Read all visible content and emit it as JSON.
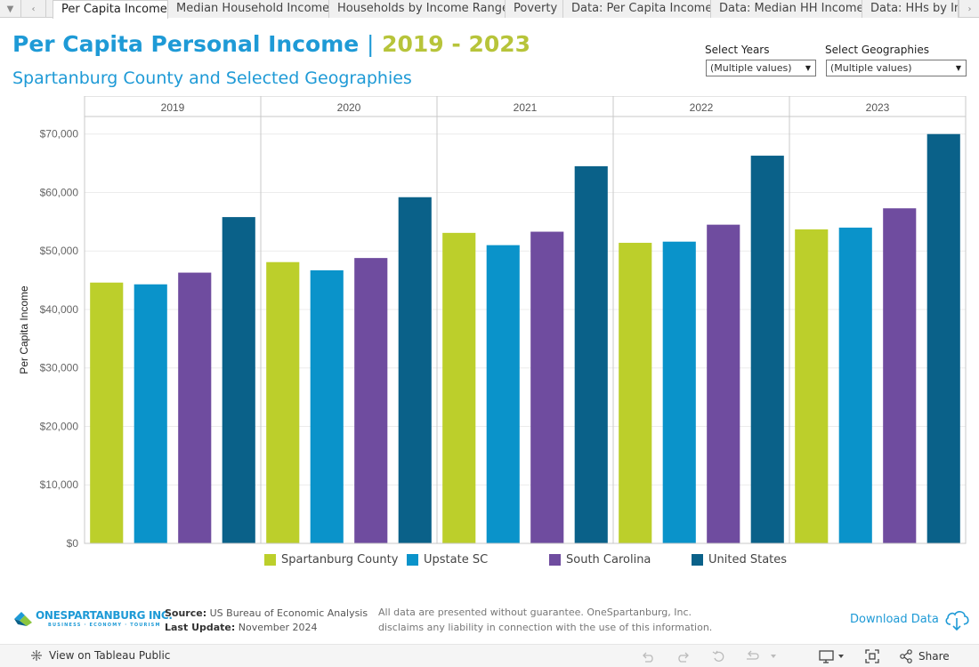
{
  "tabs": [
    {
      "label": "Per Capita Income",
      "active": true
    },
    {
      "label": "Median Household Income",
      "active": false
    },
    {
      "label": "Households by Income Range",
      "active": false
    },
    {
      "label": "Poverty",
      "active": false
    },
    {
      "label": "Data: Per Capita Income",
      "active": false
    },
    {
      "label": "Data: Median HH Income",
      "active": false
    },
    {
      "label": "Data: HHs by Inc",
      "active": false
    }
  ],
  "header": {
    "title_main": "Per Capita Personal Income",
    "title_sep": "|",
    "title_years": "2019 - 2023",
    "subtitle": "Spartanburg County and Selected Geographies"
  },
  "filters": {
    "years": {
      "label": "Select Years",
      "value": "(Multiple values)"
    },
    "geographies": {
      "label": "Select Geographies",
      "value": "(Multiple values)"
    }
  },
  "colors": {
    "Spartanburg County": "#bccf2b",
    "Upstate SC": "#0a93ca",
    "South Carolina": "#6f4c9f",
    "United States": "#0a6189",
    "accent": "#1e9ad6"
  },
  "chart_data": {
    "type": "bar",
    "title": "Per Capita Personal Income | 2019 - 2023",
    "ylabel": "Per Capita Income",
    "ylim": [
      0,
      73000
    ],
    "yticks": [
      0,
      10000,
      20000,
      30000,
      40000,
      50000,
      60000,
      70000
    ],
    "ytick_labels": [
      "$0",
      "$10,000",
      "$20,000",
      "$30,000",
      "$40,000",
      "$50,000",
      "$60,000",
      "$70,000"
    ],
    "categories": [
      "2019",
      "2020",
      "2021",
      "2022",
      "2023"
    ],
    "series": [
      {
        "name": "Spartanburg County",
        "values": [
          44600,
          48100,
          53100,
          51400,
          53700
        ]
      },
      {
        "name": "Upstate SC",
        "values": [
          44300,
          46700,
          51000,
          51600,
          54000
        ]
      },
      {
        "name": "South Carolina",
        "values": [
          46300,
          48800,
          53300,
          54500,
          57300
        ]
      },
      {
        "name": "United States",
        "values": [
          55800,
          59200,
          64500,
          66300,
          70000
        ]
      }
    ],
    "legend_position": "bottom",
    "grid": true
  },
  "footer": {
    "logo_text": "ONESPARTANBURG INC.",
    "logo_tagline": "BUSINESS · ECONOMY · TOURISM",
    "source_label": "Source:",
    "source_value": "US Bureau of Economic Analysis",
    "update_label": "Last Update:",
    "update_value": "November 2024",
    "disclaimer_line1": "All data are presented without guarantee.  OneSpartanburg, Inc.",
    "disclaimer_line2": "disclaims any liability in connection with the use of this information.",
    "download_label": "Download Data"
  },
  "toolbar": {
    "view_label": "View on Tableau Public",
    "share_label": "Share"
  }
}
